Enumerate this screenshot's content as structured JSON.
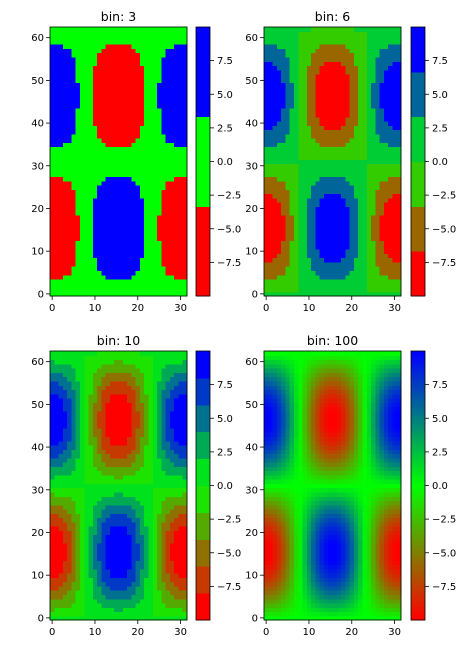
{
  "chart_data": {
    "type": "heatmap",
    "description": "",
    "colormap": [
      "#ff0000",
      "#00ff00",
      "#0000ff"
    ],
    "x_range": [
      0,
      31
    ],
    "y_range": [
      0,
      62
    ],
    "vrange": [
      -10,
      10
    ],
    "x_ticks": [
      0,
      10,
      20,
      30
    ],
    "y_ticks": [
      0,
      10,
      20,
      30,
      40,
      50,
      60
    ],
    "colorbar_ticks": [
      "7.5",
      "5.0",
      "2.5",
      "0.0",
      "−2.5",
      "−5.0",
      "−7.5"
    ],
    "colorbar_tick_values": [
      7.5,
      5.0,
      2.5,
      0.0,
      -2.5,
      -5.0,
      -7.5
    ],
    "panels": [
      {
        "title": "bin: 3",
        "bins": 3
      },
      {
        "title": "bin: 6",
        "bins": 6
      },
      {
        "title": "bin: 10",
        "bins": 10
      },
      {
        "title": "bin: 100",
        "bins": 100
      }
    ]
  }
}
